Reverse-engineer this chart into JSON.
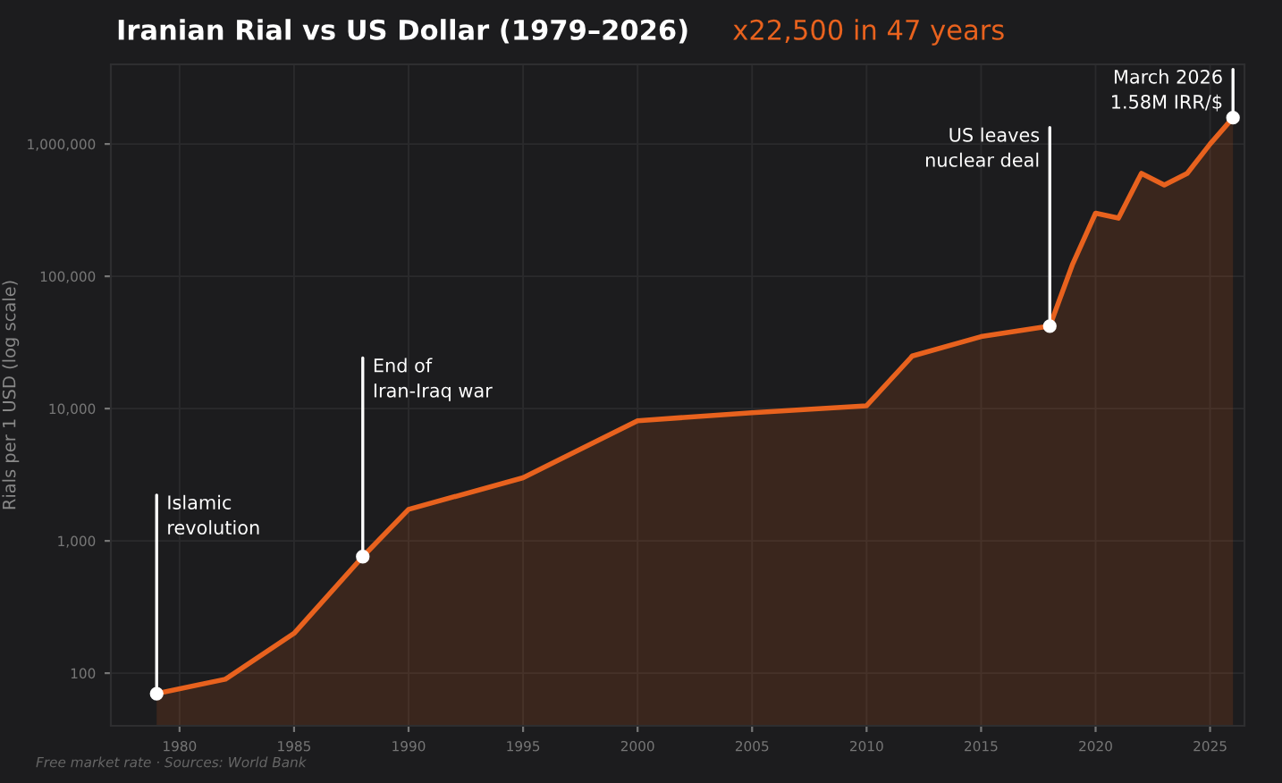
{
  "chart_data": {
    "type": "area",
    "title": "Iranian Rial vs US Dollar (1979–2026)",
    "subtitle": "x22,500 in 47 years",
    "ylabel": "Rials per 1 USD (log scale)",
    "x": [
      1979,
      1982,
      1985,
      1988,
      1990,
      1995,
      2000,
      2005,
      2010,
      2012,
      2015,
      2018,
      2019,
      2020,
      2021,
      2022,
      2023,
      2024,
      2025,
      2026
    ],
    "series": [
      {
        "color": "#e8621e",
        "values": [
          70,
          90,
          200,
          760,
          1730,
          3000,
          8100,
          9300,
          10500,
          25000,
          35000,
          42000,
          124000,
          300000,
          275000,
          600000,
          490000,
          600000,
          1000000,
          1580000
        ]
      }
    ],
    "log": "y",
    "xlim": [
      1977,
      2026.5
    ],
    "ylim": [
      40,
      4000000
    ],
    "xticks": [
      1980,
      1985,
      1990,
      1995,
      2000,
      2005,
      2010,
      2015,
      2020,
      2025
    ],
    "yticks": [
      {
        "value": 100,
        "label": "100"
      },
      {
        "value": 1000,
        "label": "1,000"
      },
      {
        "value": 10000,
        "label": "10,000"
      },
      {
        "value": 100000,
        "label": "100,000"
      },
      {
        "value": 1000000,
        "label": "1,000,000"
      }
    ],
    "grid": true,
    "annotations": [
      {
        "text": "Islamic\nrevolution",
        "x": 1979,
        "y": 70
      },
      {
        "text": "End of\nIran-Iraq war",
        "x": 1988,
        "y": 760
      },
      {
        "text": "US leaves\nnuclear deal",
        "x": 2018,
        "y": 42000
      },
      {
        "text": "March 2026\n1.58M IRR/$",
        "x": 2026,
        "y": 1580000
      },
      "Free market rate · Sources: World Bank"
    ]
  }
}
